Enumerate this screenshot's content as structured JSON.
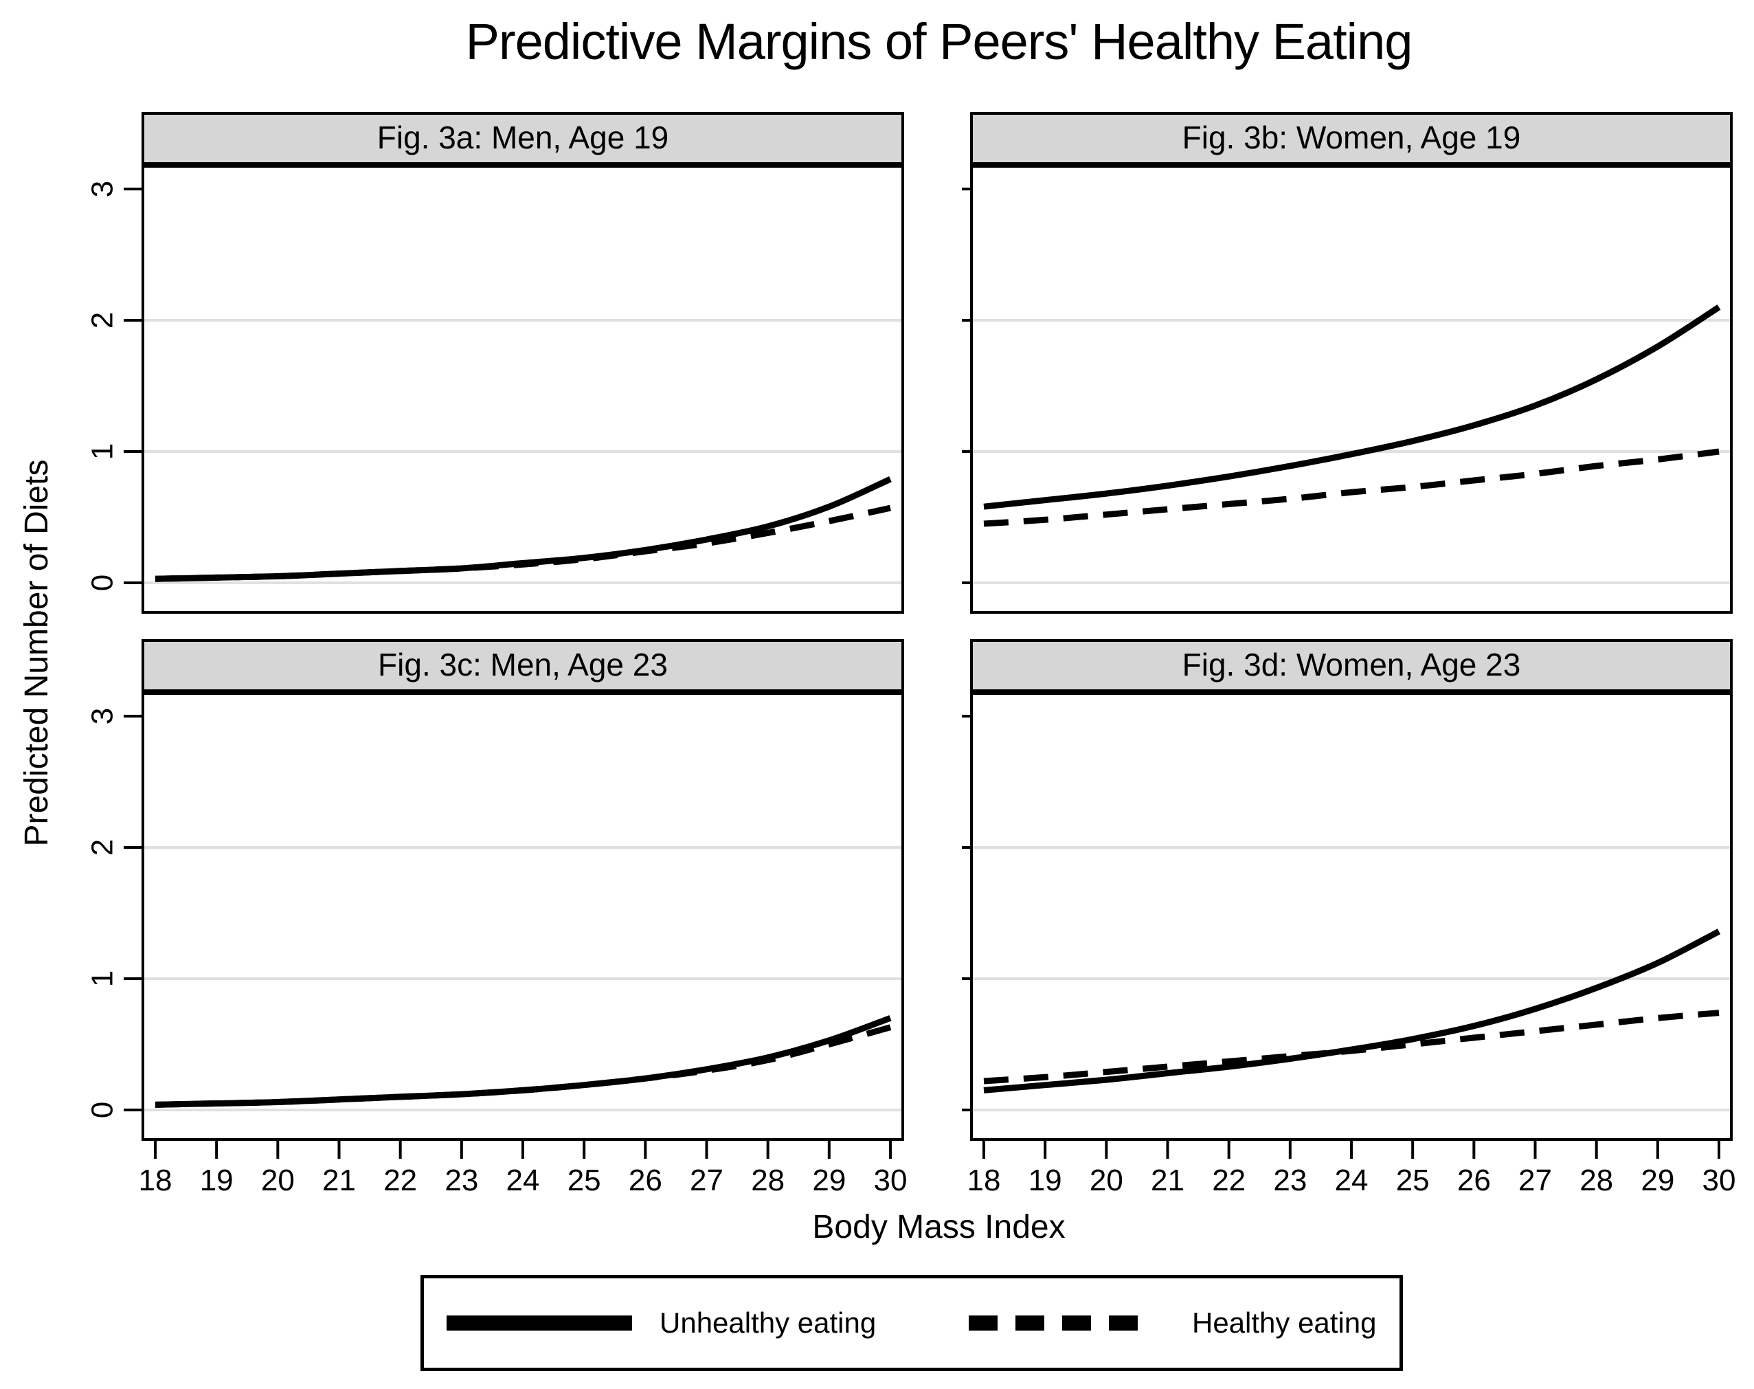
{
  "title": "Predictive Margins of Peers' Healthy Eating",
  "x_axis_title": "Body Mass Index",
  "y_axis_title": "Predicted Number of Diets",
  "legend": {
    "items": [
      {
        "label": "Unhealthy eating",
        "style": "solid"
      },
      {
        "label": "Healthy eating",
        "style": "dashed"
      }
    ]
  },
  "colors": {
    "line": "#000000",
    "border": "#000000",
    "header_bg": "#d6d6d6",
    "gridline": "#e0e0e0",
    "plot_bg": "#ffffff"
  },
  "chart_data": {
    "type": "line",
    "x": [
      18,
      19,
      20,
      21,
      22,
      23,
      24,
      25,
      26,
      27,
      28,
      29,
      30
    ],
    "x_ticks": [
      "18",
      "19",
      "20",
      "21",
      "22",
      "23",
      "24",
      "25",
      "26",
      "27",
      "28",
      "29",
      "30"
    ],
    "y_ticks": [
      "0",
      "1",
      "2",
      "3"
    ],
    "xlabel": "Body Mass Index",
    "ylabel": "Predicted Number of Diets",
    "xlim": [
      17.75,
      30.25
    ],
    "ylim": [
      -0.24,
      3.44
    ],
    "grid": "horizontal gridlines at y = 0, 1, 2",
    "legend_position": "bottom",
    "panels": [
      {
        "id": "3a",
        "title": "Fig. 3a: Men, Age 19",
        "series": [
          {
            "name": "Unhealthy eating",
            "line": "solid",
            "values": [
              0.03,
              0.04,
              0.05,
              0.07,
              0.09,
              0.11,
              0.15,
              0.19,
              0.25,
              0.33,
              0.43,
              0.58,
              0.79
            ]
          },
          {
            "name": "Healthy eating",
            "line": "dashed",
            "values": [
              0.03,
              0.04,
              0.05,
              0.07,
              0.09,
              0.11,
              0.14,
              0.18,
              0.24,
              0.3,
              0.38,
              0.47,
              0.57
            ]
          }
        ]
      },
      {
        "id": "3b",
        "title": "Fig. 3b: Women, Age 19",
        "series": [
          {
            "name": "Unhealthy eating",
            "line": "solid",
            "values": [
              0.58,
              0.63,
              0.68,
              0.74,
              0.81,
              0.89,
              0.98,
              1.08,
              1.2,
              1.35,
              1.55,
              1.8,
              2.1
            ]
          },
          {
            "name": "Healthy eating",
            "line": "dashed",
            "values": [
              0.45,
              0.48,
              0.52,
              0.56,
              0.6,
              0.64,
              0.69,
              0.73,
              0.78,
              0.83,
              0.89,
              0.94,
              1.0
            ]
          }
        ]
      },
      {
        "id": "3c",
        "title": "Fig. 3c: Men, Age 23",
        "series": [
          {
            "name": "Unhealthy eating",
            "line": "solid",
            "values": [
              0.04,
              0.05,
              0.06,
              0.08,
              0.1,
              0.12,
              0.15,
              0.19,
              0.24,
              0.31,
              0.4,
              0.53,
              0.7
            ]
          },
          {
            "name": "Healthy eating",
            "line": "dashed",
            "values": [
              0.04,
              0.05,
              0.06,
              0.08,
              0.1,
              0.12,
              0.15,
              0.19,
              0.24,
              0.3,
              0.38,
              0.5,
              0.63
            ]
          }
        ]
      },
      {
        "id": "3d",
        "title": "Fig. 3d: Women, Age 23",
        "series": [
          {
            "name": "Unhealthy eating",
            "line": "solid",
            "values": [
              0.15,
              0.19,
              0.23,
              0.28,
              0.33,
              0.39,
              0.46,
              0.54,
              0.64,
              0.77,
              0.93,
              1.12,
              1.36
            ]
          },
          {
            "name": "Healthy eating",
            "line": "dashed",
            "values": [
              0.22,
              0.25,
              0.29,
              0.33,
              0.37,
              0.41,
              0.45,
              0.5,
              0.55,
              0.6,
              0.65,
              0.7,
              0.74
            ]
          }
        ]
      }
    ]
  }
}
